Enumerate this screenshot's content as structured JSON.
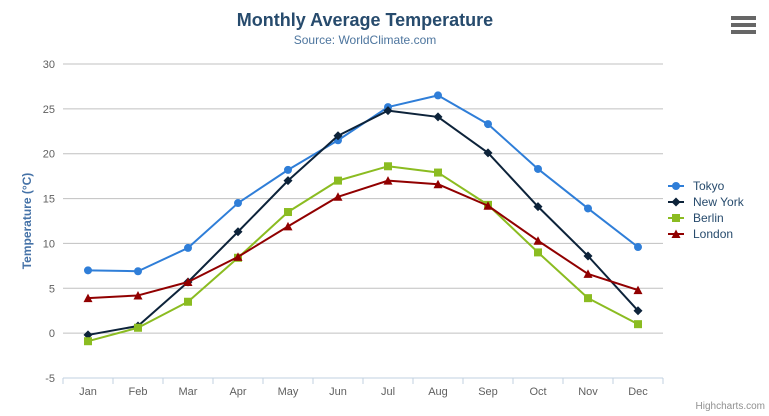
{
  "chart_data": {
    "type": "line",
    "title": "Monthly Average Temperature",
    "subtitle": "Source: WorldClimate.com",
    "xlabel": "",
    "ylabel": "Temperature (°C)",
    "categories": [
      "Jan",
      "Feb",
      "Mar",
      "Apr",
      "May",
      "Jun",
      "Jul",
      "Aug",
      "Sep",
      "Oct",
      "Nov",
      "Dec"
    ],
    "series": [
      {
        "name": "Tokyo",
        "color": "#2f7ed8",
        "marker": "circle",
        "values": [
          7.0,
          6.9,
          9.5,
          14.5,
          18.2,
          21.5,
          25.2,
          26.5,
          23.3,
          18.3,
          13.9,
          9.6
        ]
      },
      {
        "name": "New York",
        "color": "#0d233a",
        "marker": "diamond",
        "values": [
          -0.2,
          0.8,
          5.7,
          11.3,
          17.0,
          22.0,
          24.8,
          24.1,
          20.1,
          14.1,
          8.6,
          2.5
        ]
      },
      {
        "name": "Berlin",
        "color": "#8bbc21",
        "marker": "square",
        "values": [
          -0.9,
          0.6,
          3.5,
          8.4,
          13.5,
          17.0,
          18.6,
          17.9,
          14.3,
          9.0,
          3.9,
          1.0
        ]
      },
      {
        "name": "London",
        "color": "#910000",
        "marker": "triangle",
        "values": [
          3.9,
          4.2,
          5.7,
          8.5,
          11.9,
          15.2,
          17.0,
          16.6,
          14.2,
          10.3,
          6.6,
          4.8
        ]
      }
    ],
    "ylim": [
      -5,
      30
    ],
    "ytick_step": 5,
    "yticks": [
      -5,
      0,
      5,
      10,
      15,
      20,
      25,
      30
    ],
    "grid": true,
    "legend_position": "right"
  },
  "credits": {
    "label": "Highcharts.com"
  },
  "export_menu": {
    "icon": "hamburger-icon"
  },
  "colors": {
    "title": "#274b6d",
    "subtitle": "#4d759e",
    "axis_label": "#606060",
    "axis_title": "#4572a7",
    "gridline": "#c0c0c0",
    "axis_line": "#c0d0e0",
    "legend_text": "#274b6d",
    "credits_text": "#909090",
    "menu_icon": "#666666"
  }
}
